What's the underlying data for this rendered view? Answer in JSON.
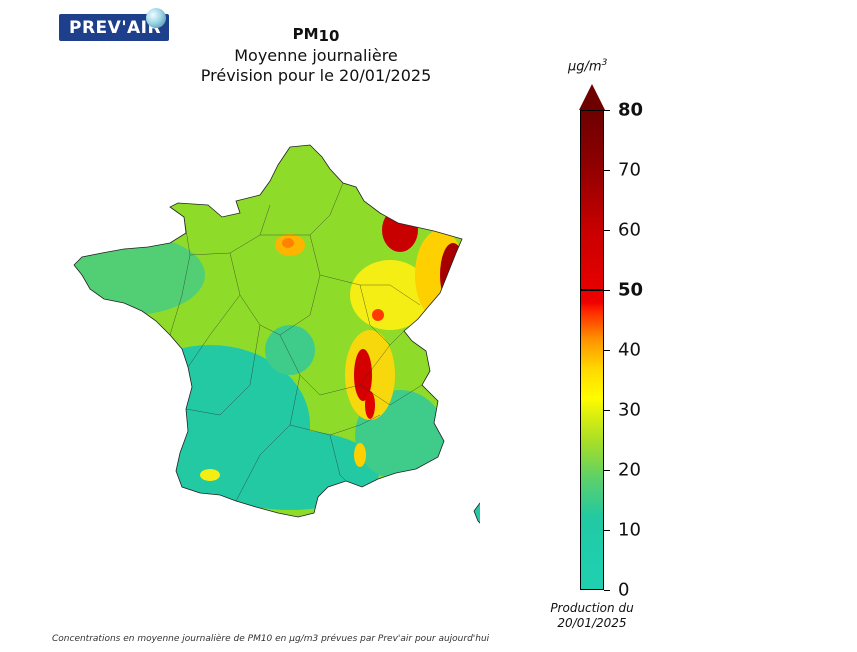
{
  "logo": {
    "text": "PREV'AIR"
  },
  "title": {
    "pollutant": "PM",
    "pollutant_sub": "10",
    "line2": "Moyenne journalière",
    "line3": "Prévision pour le 20/01/2025"
  },
  "colorbar": {
    "unit_prefix": "µg/m",
    "unit_exp": "3",
    "ticks": [
      "0",
      "10",
      "20",
      "30",
      "40",
      "50",
      "60",
      "70",
      "80"
    ],
    "bold_ticks": [
      "50",
      "80"
    ],
    "colors": {
      "low": "#1fcfae",
      "mid": "#9fdd2c",
      "yellow": "#fffc00",
      "orange": "#ff9600",
      "red": "#ee0000",
      "dark_red": "#6e0000"
    }
  },
  "production": {
    "line1": "Production du",
    "line2": "20/01/2025"
  },
  "footer": "Concentrations en moyenne journalière de PM10 en µg/m3 prévues par Prev'air pour aujourd'hui"
}
